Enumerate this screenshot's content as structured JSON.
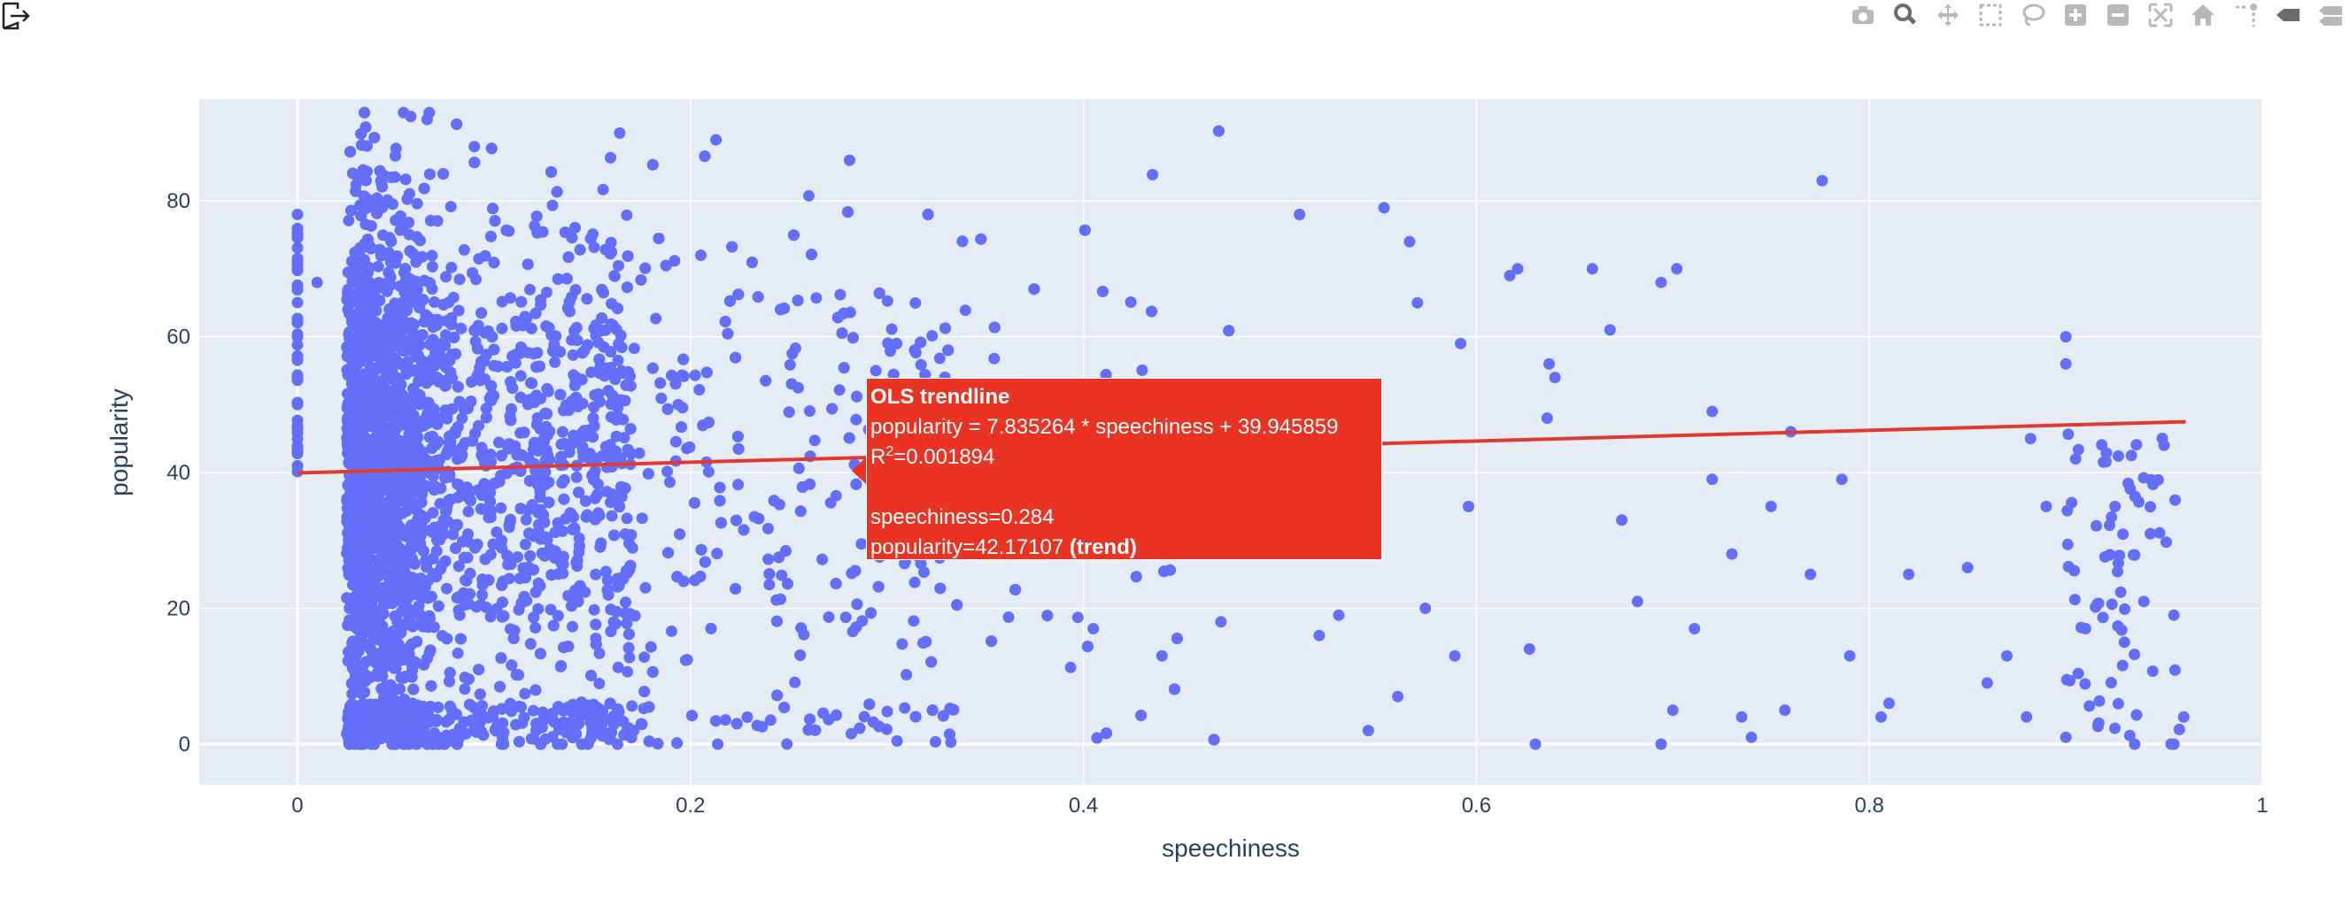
{
  "colors": {
    "plot_bg": "#e5ecf6",
    "grid": "#ffffff",
    "points": "#636efa",
    "trendline": "#e03a2f",
    "hover_bg": "#ea3322",
    "text": "#2a3f5f",
    "modebar_icon": "#b8b8b8",
    "modebar_active": "#6b6b6b"
  },
  "modebar": {
    "buttons": [
      {
        "name": "camera-icon",
        "active": false
      },
      {
        "name": "zoom-icon",
        "active": true
      },
      {
        "name": "pan-icon",
        "active": false
      },
      {
        "name": "box-select-icon",
        "active": false
      },
      {
        "name": "lasso-select-icon",
        "active": false
      },
      {
        "name": "zoom-in-icon",
        "active": false
      },
      {
        "name": "zoom-out-icon",
        "active": false
      },
      {
        "name": "autoscale-icon",
        "active": false
      },
      {
        "name": "reset-axes-icon",
        "active": false
      },
      {
        "name": "spike-lines-icon",
        "active": false
      },
      {
        "name": "hover-closest-icon",
        "active": true
      },
      {
        "name": "hover-compare-icon",
        "active": false
      }
    ]
  },
  "chart_data": {
    "type": "scatter",
    "title": "",
    "xlabel": "speechiness",
    "ylabel": "popularity",
    "xlim": [
      -0.05,
      1.0
    ],
    "ylim": [
      -6,
      95
    ],
    "xticks": [
      0,
      0.2,
      0.4,
      0.6,
      0.8,
      1
    ],
    "xtick_labels": [
      "0",
      "0.2",
      "0.4",
      "0.6",
      "0.8",
      "1"
    ],
    "yticks": [
      0,
      20,
      40,
      60,
      80
    ],
    "ytick_labels": [
      "0",
      "20",
      "40",
      "60",
      "80"
    ],
    "grid": true,
    "legend": "none",
    "trendline": {
      "type": "OLS",
      "slope": 7.835264,
      "intercept": 39.945859,
      "r_squared": 0.001894,
      "x_range": [
        0,
        0.961
      ]
    },
    "scatter_summary": {
      "dense_band_x": [
        0.022,
        0.3
      ],
      "y_range": [
        0,
        93
      ],
      "approx_point_count": 6000
    },
    "sample_points": [
      [
        0.0,
        78
      ],
      [
        0.0,
        70
      ],
      [
        0.0,
        60
      ],
      [
        0.0,
        50
      ],
      [
        0.0,
        41
      ],
      [
        0.01,
        68
      ],
      [
        0.054,
        93
      ],
      [
        0.066,
        92
      ],
      [
        0.164,
        90
      ],
      [
        0.213,
        89
      ],
      [
        0.09,
        88
      ],
      [
        0.281,
        86
      ],
      [
        0.776,
        83
      ],
      [
        0.51,
        78
      ],
      [
        0.553,
        79
      ],
      [
        0.566,
        74
      ],
      [
        0.617,
        69
      ],
      [
        0.621,
        70
      ],
      [
        0.659,
        70
      ],
      [
        0.694,
        68
      ],
      [
        0.702,
        70
      ],
      [
        0.57,
        65
      ],
      [
        0.592,
        59
      ],
      [
        0.668,
        61
      ],
      [
        0.9,
        60
      ],
      [
        0.9,
        56
      ],
      [
        0.637,
        56
      ],
      [
        0.64,
        54
      ],
      [
        0.72,
        49
      ],
      [
        0.636,
        48
      ],
      [
        0.76,
        46
      ],
      [
        0.786,
        39
      ],
      [
        0.72,
        39
      ],
      [
        0.882,
        45
      ],
      [
        0.905,
        42
      ],
      [
        0.95,
        44
      ],
      [
        0.596,
        35
      ],
      [
        0.674,
        33
      ],
      [
        0.73,
        28
      ],
      [
        0.75,
        35
      ],
      [
        0.77,
        25
      ],
      [
        0.82,
        25
      ],
      [
        0.85,
        26
      ],
      [
        0.89,
        35
      ],
      [
        0.925,
        35
      ],
      [
        0.943,
        31
      ],
      [
        0.574,
        20
      ],
      [
        0.682,
        21
      ],
      [
        0.711,
        17
      ],
      [
        0.79,
        13
      ],
      [
        0.86,
        9
      ],
      [
        0.87,
        13
      ],
      [
        0.91,
        17
      ],
      [
        0.955,
        19
      ],
      [
        0.589,
        13
      ],
      [
        0.627,
        14
      ],
      [
        0.52,
        16
      ],
      [
        0.53,
        19
      ],
      [
        0.47,
        18
      ],
      [
        0.44,
        13
      ],
      [
        0.405,
        17
      ],
      [
        0.7,
        5
      ],
      [
        0.74,
        1
      ],
      [
        0.806,
        4
      ],
      [
        0.81,
        6
      ],
      [
        0.88,
        4
      ],
      [
        0.9,
        1
      ],
      [
        0.935,
        0
      ],
      [
        0.96,
        4
      ],
      [
        0.955,
        0
      ],
      [
        0.63,
        0
      ],
      [
        0.694,
        0
      ],
      [
        0.735,
        4
      ],
      [
        0.757,
        5
      ],
      [
        0.56,
        7
      ],
      [
        0.545,
        2
      ]
    ]
  },
  "hover": {
    "title": "OLS trendline",
    "equation": "popularity = 7.835264 * speechiness + 39.945859",
    "r2_prefix": "R",
    "r2_sup": "2",
    "r2_value": "=0.001894",
    "x_line": "speechiness=0.284",
    "y_line": "popularity=42.17107",
    "y_suffix": "(trend)",
    "x": 0.284,
    "y": 42.17107
  }
}
